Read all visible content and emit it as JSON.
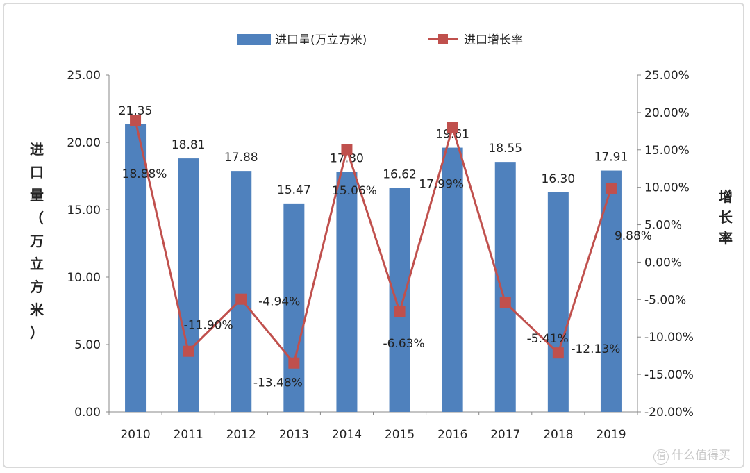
{
  "chart_data": {
    "type": "bar+line",
    "categories": [
      "2010",
      "2011",
      "2012",
      "2013",
      "2014",
      "2015",
      "2016",
      "2017",
      "2018",
      "2019"
    ],
    "series": [
      {
        "name": "进口量(万立方米)",
        "type": "bar",
        "axis": "left",
        "color": "#4f81bd",
        "values": [
          21.35,
          18.81,
          17.88,
          15.47,
          17.8,
          16.62,
          19.61,
          18.55,
          16.3,
          17.91
        ],
        "labels": [
          "21.35",
          "18.81",
          "17.88",
          "15.47",
          "17.80",
          "16.62",
          "19.61",
          "18.55",
          "16.30",
          "17.91"
        ]
      },
      {
        "name": "进口增长率",
        "type": "line",
        "axis": "right",
        "color": "#c0504d",
        "values": [
          18.88,
          -11.9,
          -4.94,
          -13.48,
          15.06,
          -6.63,
          17.99,
          -5.41,
          -12.13,
          9.88
        ],
        "labels": [
          "18.88%",
          "-11.90%",
          "-4.94%",
          "-13.48%",
          "15.06%",
          "-6.63%",
          "17.99%",
          "-5.41%",
          "-12.13%",
          "9.88%"
        ]
      }
    ],
    "ylabel": "进口量（万立方米）",
    "y2label": "增长率",
    "ylim": [
      0,
      25
    ],
    "y2lim": [
      -20,
      25
    ],
    "yticks": [
      "0.00",
      "5.00",
      "10.00",
      "15.00",
      "20.00",
      "25.00"
    ],
    "y2ticks": [
      "-20.00%",
      "-15.00%",
      "-10.00%",
      "-5.00%",
      "0.00%",
      "5.00%",
      "10.00%",
      "15.00%",
      "20.00%",
      "25.00%"
    ],
    "legend_position": "top",
    "grid": false
  },
  "watermark": {
    "badge": "值",
    "text": "什么值得买"
  }
}
